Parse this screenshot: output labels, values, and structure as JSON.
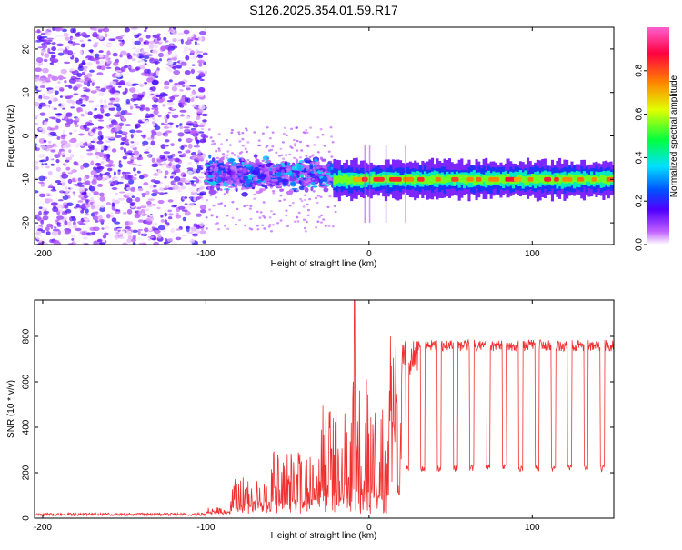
{
  "title": "S126.2025.354.01.59.R17",
  "spectrogram": {
    "type": "heatmap",
    "xlabel": "Height of straight line (km)",
    "ylabel": "Frequency (Hz)",
    "xlim": [
      -205,
      150
    ],
    "ylim": [
      -25,
      25
    ],
    "xticks": [
      "-200",
      "-100",
      "0",
      "100"
    ],
    "yticks": [
      "20",
      "10",
      "0",
      "-10",
      "-20"
    ],
    "colorbar": {
      "label": "Normalized spectral amplitude",
      "range": [
        0,
        1
      ],
      "ticks": [
        "0.0",
        "0.2",
        "0.4",
        "0.6",
        "0.8"
      ],
      "colors": [
        "#ffffff",
        "#c060ff",
        "#5000ff",
        "#0050ff",
        "#00e0ff",
        "#00ff40",
        "#e0ff00",
        "#ff8000",
        "#ff0040",
        "#ff60d0"
      ]
    },
    "regions": [
      {
        "name": "noise",
        "x": [
          -205,
          -100
        ],
        "freq": [
          -25,
          25
        ],
        "amplitude": [
          0.0,
          0.2
        ]
      },
      {
        "name": "scatter",
        "x": [
          -100,
          -20
        ],
        "freq": [
          -18,
          0
        ],
        "amplitude": [
          0.05,
          0.4
        ]
      },
      {
        "name": "carrier",
        "x": [
          -22,
          150
        ],
        "freq_center": -10,
        "amplitude": [
          0.4,
          1.0
        ]
      }
    ]
  },
  "snr_chart": {
    "type": "line",
    "xlabel": "Height of straight line (km)",
    "ylabel": "SNR (10 * v/v)",
    "xlim": [
      -205,
      150
    ],
    "ylim": [
      0,
      960
    ],
    "xticks": [
      "-200",
      "-100",
      "0",
      "100"
    ],
    "yticks": [
      "0",
      "200",
      "400",
      "600",
      "800"
    ],
    "color": "#f03030",
    "segments": [
      {
        "x": [
          -205,
          -100
        ],
        "level": 15,
        "noise": 12
      },
      {
        "x": [
          -100,
          -85
        ],
        "level": 40,
        "noise": 60
      },
      {
        "x": [
          -85,
          -60
        ],
        "level": 150,
        "noise": 180
      },
      {
        "x": [
          -60,
          -30
        ],
        "level": 250,
        "noise": 250
      },
      {
        "x": [
          -30,
          -10
        ],
        "level": 420,
        "noise": 400
      },
      {
        "x": [
          -10,
          0
        ],
        "level": 520,
        "noise": 420
      },
      {
        "x": [
          0,
          20
        ],
        "level": 400,
        "noise": 280
      },
      {
        "x": [
          20,
          30
        ],
        "level": 700,
        "noise": 80
      },
      {
        "x": [
          30,
          150
        ],
        "level": 760,
        "noise": 25
      }
    ],
    "peak": {
      "x": -9,
      "value": 960
    },
    "dropouts": {
      "level": 220,
      "x": [
        23,
        33,
        43,
        53,
        63,
        73,
        83,
        93,
        103,
        113,
        123,
        133,
        143
      ]
    }
  }
}
